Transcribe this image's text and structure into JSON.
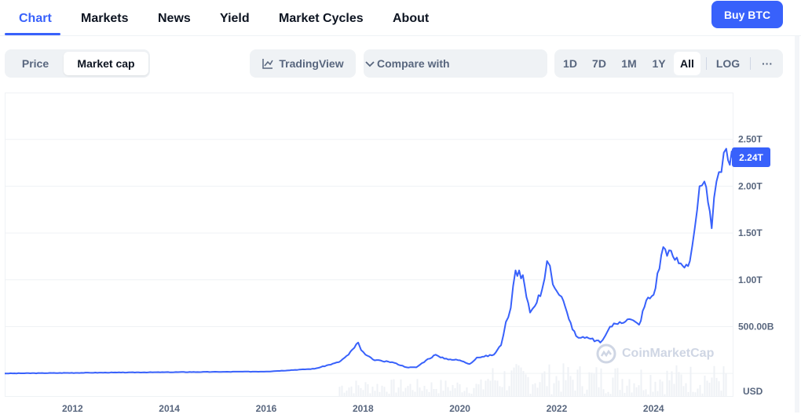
{
  "nav": {
    "tabs": [
      {
        "label": "Chart"
      },
      {
        "label": "Markets"
      },
      {
        "label": "News"
      },
      {
        "label": "Yield"
      },
      {
        "label": "Market Cycles"
      },
      {
        "label": "About"
      }
    ],
    "active_tab": "Chart",
    "buy_label": "Buy BTC"
  },
  "toolbar": {
    "metric_options": [
      "Price",
      "Market cap"
    ],
    "metric_selected": "Market cap",
    "tradingview_label": "TradingView",
    "compare_label": "Compare with",
    "ranges": [
      "1D",
      "7D",
      "1M",
      "1Y",
      "All"
    ],
    "range_selected": "All",
    "log_label": "LOG",
    "more_label": "···"
  },
  "chart": {
    "current_value_label": "2.24T",
    "currency_label": "USD",
    "watermark": "CoinMarketCap",
    "accent_color": "#3861fb"
  },
  "chart_data": {
    "type": "line",
    "series": [
      {
        "x": [
          2010.6,
          2013.0,
          2016.0,
          2017.0,
          2017.5,
          2017.7,
          2017.9,
          2017.96,
          2018.05,
          2018.2,
          2018.4,
          2018.6,
          2018.9,
          2019.1,
          2019.3,
          2019.5,
          2019.6,
          2019.8,
          2020.0,
          2020.2,
          2020.35,
          2020.5,
          2020.7,
          2020.85,
          2020.95,
          2021.05,
          2021.15,
          2021.3,
          2021.45,
          2021.55,
          2021.7,
          2021.8,
          2021.86,
          2021.92,
          2022.0,
          2022.1,
          2022.25,
          2022.4,
          2022.5,
          2022.7,
          2022.9,
          2023.0,
          2023.1,
          2023.3,
          2023.5,
          2023.7,
          2023.85,
          2024.0,
          2024.2,
          2024.4,
          2024.6,
          2024.75,
          2024.85,
          2024.95,
          2025.05,
          2025.2,
          2025.3,
          2025.4,
          2025.5,
          2025.65
        ],
        "y": [
          0.0,
          0.01,
          0.02,
          0.05,
          0.12,
          0.2,
          0.33,
          0.25,
          0.2,
          0.15,
          0.13,
          0.12,
          0.065,
          0.065,
          0.14,
          0.2,
          0.17,
          0.15,
          0.14,
          0.1,
          0.17,
          0.18,
          0.2,
          0.3,
          0.55,
          0.7,
          1.1,
          1.05,
          0.65,
          0.72,
          0.9,
          1.2,
          1.15,
          0.95,
          0.88,
          0.82,
          0.58,
          0.4,
          0.38,
          0.37,
          0.33,
          0.4,
          0.5,
          0.55,
          0.58,
          0.52,
          0.78,
          0.84,
          1.35,
          1.25,
          1.15,
          1.2,
          1.55,
          2.0,
          2.05,
          1.55,
          2.05,
          2.15,
          2.4,
          2.24
        ]
      }
    ],
    "title": "",
    "xlabel": "",
    "ylabel": "",
    "xlim": [
      2010.6,
      2025.65
    ],
    "ylim": [
      -0.25,
      3.0
    ],
    "x_ticks": [
      "2012",
      "2014",
      "2016",
      "2018",
      "2020",
      "2022",
      "2024"
    ],
    "y_ticks": [
      "500.00B",
      "1.00T",
      "1.50T",
      "2.00T",
      "2.50T"
    ],
    "grid": true,
    "legend": "none"
  }
}
